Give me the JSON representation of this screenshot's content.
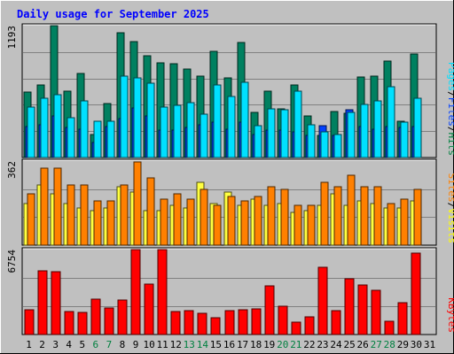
{
  "chart_data": [
    {
      "type": "bar",
      "title": "Daily usage for September 2025",
      "categories": [
        "1",
        "2",
        "3",
        "4",
        "5",
        "6",
        "7",
        "8",
        "9",
        "10",
        "11",
        "12",
        "13",
        "14",
        "15",
        "16",
        "17",
        "18",
        "19",
        "20",
        "21",
        "22",
        "23",
        "24",
        "25",
        "26",
        "27",
        "28",
        "29",
        "30",
        "31"
      ],
      "weekend_days": [
        "6",
        "7",
        "13",
        "14",
        "20",
        "21",
        "27",
        "28"
      ],
      "panels": [
        {
          "name": "hits-files-pages",
          "ymax_label": "1193",
          "ylim": [
            0,
            1193
          ],
          "legend": [
            {
              "text": "Pages",
              "color": "#00e0ff"
            },
            {
              "text": "/",
              "color": "#000000"
            },
            {
              "text": "Files",
              "color": "#0040ff"
            },
            {
              "text": "/",
              "color": "#000000"
            },
            {
              "text": "Hits",
              "color": "#008040"
            }
          ],
          "series": [
            {
              "name": "Hits",
              "color": "#008060",
              "values": [
                590,
                660,
                1190,
                600,
                760,
                210,
                490,
                1130,
                1050,
                920,
                860,
                850,
                800,
                740,
                960,
                720,
                1040,
                410,
                600,
                440,
                660,
                380,
                200,
                420,
                400,
                730,
                740,
                870,
                330,
                940,
                0
              ]
            },
            {
              "name": "Files",
              "color": "#0040ff",
              "values": [
                280,
                300,
                380,
                270,
                260,
                140,
                280,
                350,
                450,
                380,
                250,
                250,
                270,
                300,
                320,
                260,
                320,
                210,
                250,
                250,
                230,
                200,
                290,
                200,
                430,
                280,
                260,
                280,
                270,
                280,
                0
              ]
            },
            {
              "name": "Pages",
              "color": "#00e0ff",
              "values": [
                460,
                540,
                570,
                360,
                510,
                330,
                330,
                740,
                720,
                670,
                460,
                470,
                500,
                390,
                660,
                550,
                680,
                290,
                440,
                430,
                600,
                300,
                230,
                210,
                410,
                480,
                510,
                640,
                320,
                540,
                0
              ]
            }
          ]
        },
        {
          "name": "visits-sites",
          "ymax_label": "362",
          "ylim": [
            0,
            362
          ],
          "legend": [
            {
              "text": "Sites",
              "color": "#ff8000"
            },
            {
              "text": "/",
              "color": "#000000"
            },
            {
              "text": "Visits",
              "color": "#ffff00"
            }
          ],
          "series": [
            {
              "name": "Visits",
              "color": "#ffff40",
              "values": [
                180,
                260,
                220,
                180,
                160,
                150,
                160,
                250,
                230,
                150,
                150,
                170,
                160,
                270,
                180,
                230,
                170,
                200,
                170,
                180,
                140,
                150,
                170,
                220,
                170,
                190,
                180,
                160,
                160,
                190,
                0
              ]
            },
            {
              "name": "Sites",
              "color": "#ff8000",
              "values": [
                220,
                330,
                330,
                260,
                260,
                190,
                190,
                260,
                360,
                290,
                200,
                220,
                200,
                240,
                170,
                210,
                190,
                210,
                250,
                240,
                170,
                170,
                270,
                250,
                300,
                250,
                250,
                180,
                200,
                240,
                0
              ]
            }
          ]
        },
        {
          "name": "kbytes",
          "ymax_label": "6754",
          "ylim": [
            0,
            6754
          ],
          "legend": [
            {
              "text": "KBytes",
              "color": "#ff0000"
            }
          ],
          "series": [
            {
              "name": "KBytes",
              "color": "#ff0000",
              "values": [
                1980,
                5040,
                4990,
                1860,
                1770,
                2830,
                2090,
                2710,
                6720,
                4010,
                6760,
                1800,
                1880,
                1680,
                1320,
                1930,
                1990,
                2050,
                3870,
                2220,
                950,
                1380,
                5350,
                1900,
                4400,
                3960,
                3520,
                1090,
                2520,
                6480,
                0
              ]
            }
          ]
        }
      ]
    }
  ]
}
